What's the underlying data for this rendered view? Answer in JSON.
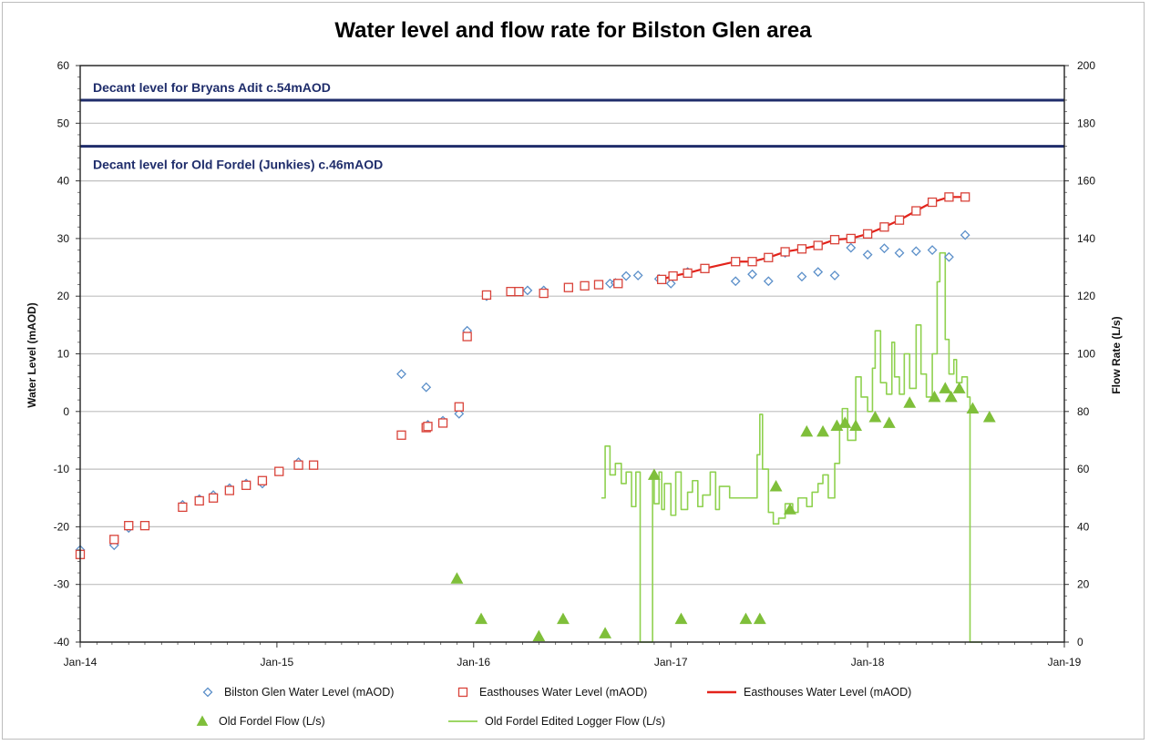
{
  "chart_data": {
    "type": "scatter",
    "title": "Water level and flow rate for Bilston Glen area",
    "ylabel": "Water Level (mAOD)",
    "y2label": "Flow Rate (L/s)",
    "ylim": [
      -40,
      60
    ],
    "y2lim": [
      0,
      200
    ],
    "xlim": [
      "2014-01-01",
      "2019-01-01"
    ],
    "x_ticks": [
      "Jan-14",
      "Jan-15",
      "Jan-16",
      "Jan-17",
      "Jan-18",
      "Jan-19"
    ],
    "y_ticks": [
      60,
      50,
      40,
      30,
      20,
      10,
      0,
      -10,
      -20,
      -30,
      -40
    ],
    "y2_ticks": [
      200,
      180,
      160,
      140,
      120,
      100,
      80,
      60,
      40,
      20,
      0
    ],
    "grid": true,
    "legend_position": "bottom",
    "reference_lines": [
      {
        "label": "Decant level for Bryans Adit c.54mAOD",
        "y": 54
      },
      {
        "label": "Decant level for Old Fordel (Junkies) c.46mAOD",
        "y": 46
      }
    ],
    "series": [
      {
        "name": "Bilston Glen Water Level (mAOD)",
        "axis": "left",
        "marker": "diamond",
        "color": "#5b8fc9",
        "points": [
          [
            "2014-01-01",
            -24.0
          ],
          [
            "2014-03-05",
            -23.2
          ],
          [
            "2014-04-01",
            -20.2
          ],
          [
            "2014-07-10",
            -16.2
          ],
          [
            "2014-08-10",
            -15.2
          ],
          [
            "2014-09-05",
            -14.5
          ],
          [
            "2014-10-05",
            -13.3
          ],
          [
            "2014-11-05",
            -12.5
          ],
          [
            "2014-12-05",
            -12.5
          ],
          [
            "2015-02-10",
            -8.8
          ],
          [
            "2015-08-20",
            6.5
          ],
          [
            "2015-10-05",
            4.2
          ],
          [
            "2015-10-08",
            -2.3
          ],
          [
            "2015-11-05",
            -1.6
          ],
          [
            "2015-12-05",
            -0.4
          ],
          [
            "2015-12-20",
            14.0
          ],
          [
            "2016-01-25",
            20.0
          ],
          [
            "2016-04-10",
            21.0
          ],
          [
            "2016-05-10",
            21.0
          ],
          [
            "2016-09-10",
            22.2
          ],
          [
            "2016-09-20",
            22.3
          ],
          [
            "2016-10-10",
            23.5
          ],
          [
            "2016-11-01",
            23.6
          ],
          [
            "2016-12-10",
            23.0
          ],
          [
            "2017-01-01",
            22.2
          ],
          [
            "2017-02-01",
            24.2
          ],
          [
            "2017-05-01",
            22.6
          ],
          [
            "2017-06-01",
            23.8
          ],
          [
            "2017-07-01",
            22.6
          ],
          [
            "2017-08-01",
            27.5
          ],
          [
            "2017-09-01",
            23.4
          ],
          [
            "2017-10-01",
            24.2
          ],
          [
            "2017-11-01",
            23.6
          ],
          [
            "2017-12-01",
            28.4
          ],
          [
            "2018-01-01",
            27.2
          ],
          [
            "2018-02-01",
            28.3
          ],
          [
            "2018-03-01",
            27.5
          ],
          [
            "2018-04-01",
            27.8
          ],
          [
            "2018-05-01",
            28.0
          ],
          [
            "2018-06-01",
            26.8
          ],
          [
            "2018-07-01",
            30.6
          ]
        ]
      },
      {
        "name": "Easthouses Water Level (mAOD)",
        "axis": "left",
        "marker": "square",
        "color": "#d9433a",
        "points": [
          [
            "2014-01-01",
            -24.8
          ],
          [
            "2014-03-05",
            -22.2
          ],
          [
            "2014-04-01",
            -19.8
          ],
          [
            "2014-05-01",
            -19.8
          ],
          [
            "2014-07-10",
            -16.6
          ],
          [
            "2014-08-10",
            -15.5
          ],
          [
            "2014-09-05",
            -15.0
          ],
          [
            "2014-10-05",
            -13.7
          ],
          [
            "2014-11-05",
            -12.8
          ],
          [
            "2014-12-05",
            -12.0
          ],
          [
            "2015-01-05",
            -10.4
          ],
          [
            "2015-02-10",
            -9.3
          ],
          [
            "2015-03-10",
            -9.3
          ],
          [
            "2015-08-20",
            -4.1
          ],
          [
            "2015-10-05",
            -2.8
          ],
          [
            "2015-10-08",
            -2.6
          ],
          [
            "2015-11-05",
            -2.0
          ],
          [
            "2015-12-05",
            0.8
          ],
          [
            "2015-12-20",
            13.0
          ],
          [
            "2016-01-25",
            20.2
          ],
          [
            "2016-03-10",
            20.8
          ],
          [
            "2016-03-25",
            20.8
          ],
          [
            "2016-05-10",
            20.5
          ],
          [
            "2016-06-25",
            21.5
          ],
          [
            "2016-07-25",
            21.8
          ],
          [
            "2016-08-20",
            22.0
          ],
          [
            "2016-09-25",
            22.2
          ],
          [
            "2016-12-15",
            22.9
          ],
          [
            "2017-01-05",
            23.5
          ],
          [
            "2017-02-01",
            24.0
          ],
          [
            "2017-03-05",
            24.8
          ],
          [
            "2017-05-01",
            26.0
          ],
          [
            "2017-06-01",
            26.0
          ],
          [
            "2017-07-01",
            26.7
          ],
          [
            "2017-08-01",
            27.7
          ],
          [
            "2017-09-01",
            28.2
          ],
          [
            "2017-10-01",
            28.8
          ],
          [
            "2017-11-01",
            29.8
          ],
          [
            "2017-12-01",
            30.0
          ],
          [
            "2018-01-01",
            30.8
          ],
          [
            "2018-02-01",
            32.0
          ],
          [
            "2018-03-01",
            33.2
          ],
          [
            "2018-04-01",
            34.8
          ],
          [
            "2018-05-01",
            36.3
          ],
          [
            "2018-06-01",
            37.2
          ],
          [
            "2018-07-01",
            37.2
          ]
        ]
      },
      {
        "name": "Easthouses Water Level (mAOD)",
        "axis": "left",
        "marker": "line",
        "color": "#e3231b",
        "points": [
          [
            "2016-12-15",
            22.9
          ],
          [
            "2017-01-05",
            23.5
          ],
          [
            "2017-02-01",
            24.0
          ],
          [
            "2017-03-05",
            24.8
          ],
          [
            "2017-05-01",
            26.0
          ],
          [
            "2017-06-01",
            26.0
          ],
          [
            "2017-07-01",
            26.7
          ],
          [
            "2017-08-01",
            27.7
          ],
          [
            "2017-09-01",
            28.2
          ],
          [
            "2017-10-01",
            28.8
          ],
          [
            "2017-11-01",
            29.8
          ],
          [
            "2017-12-01",
            30.0
          ],
          [
            "2018-01-01",
            30.8
          ],
          [
            "2018-02-01",
            32.0
          ],
          [
            "2018-03-01",
            33.2
          ],
          [
            "2018-04-01",
            34.8
          ],
          [
            "2018-05-01",
            36.3
          ],
          [
            "2018-06-01",
            37.2
          ],
          [
            "2018-07-01",
            37.2
          ]
        ]
      },
      {
        "name": "Old Fordel Flow (L/s)",
        "axis": "right",
        "marker": "triangle",
        "color": "#7fbf3a",
        "points": [
          [
            "2015-12-01",
            22
          ],
          [
            "2016-01-15",
            8
          ],
          [
            "2016-05-01",
            2
          ],
          [
            "2016-06-15",
            8
          ],
          [
            "2016-09-01",
            3
          ],
          [
            "2016-12-01",
            58
          ],
          [
            "2017-01-20",
            8
          ],
          [
            "2017-05-20",
            8
          ],
          [
            "2017-06-15",
            8
          ],
          [
            "2017-07-15",
            54
          ],
          [
            "2017-08-10",
            46
          ],
          [
            "2017-09-10",
            73
          ],
          [
            "2017-10-10",
            73
          ],
          [
            "2017-11-05",
            75
          ],
          [
            "2017-11-20",
            76
          ],
          [
            "2017-12-10",
            75
          ],
          [
            "2018-01-15",
            78
          ],
          [
            "2018-02-10",
            76
          ],
          [
            "2018-03-20",
            83
          ],
          [
            "2018-05-05",
            85
          ],
          [
            "2018-05-25",
            88
          ],
          [
            "2018-06-05",
            85
          ],
          [
            "2018-06-20",
            88
          ],
          [
            "2018-07-15",
            81
          ],
          [
            "2018-08-15",
            78
          ]
        ]
      },
      {
        "name": "Old Fordel Edited Logger Flow (L/s)",
        "axis": "right",
        "marker": "line",
        "color": "#8fd14f",
        "points": [
          [
            "2016-08-25",
            50
          ],
          [
            "2016-09-01",
            68
          ],
          [
            "2016-09-10",
            58
          ],
          [
            "2016-09-20",
            62
          ],
          [
            "2016-10-01",
            55
          ],
          [
            "2016-10-10",
            59
          ],
          [
            "2016-10-20",
            47
          ],
          [
            "2016-10-28",
            59
          ],
          [
            "2016-11-05",
            0
          ],
          [
            "2016-11-20",
            0
          ],
          [
            "2016-11-28",
            57
          ],
          [
            "2016-12-01",
            48
          ],
          [
            "2016-12-10",
            59
          ],
          [
            "2016-12-15",
            46
          ],
          [
            "2016-12-20",
            55
          ],
          [
            "2017-01-01",
            44
          ],
          [
            "2017-01-10",
            59
          ],
          [
            "2017-01-20",
            46
          ],
          [
            "2017-02-01",
            52
          ],
          [
            "2017-02-10",
            56
          ],
          [
            "2017-02-20",
            47
          ],
          [
            "2017-03-01",
            51
          ],
          [
            "2017-03-15",
            59
          ],
          [
            "2017-03-25",
            46
          ],
          [
            "2017-04-01",
            54
          ],
          [
            "2017-04-20",
            50
          ],
          [
            "2017-06-10",
            65
          ],
          [
            "2017-06-15",
            79
          ],
          [
            "2017-06-20",
            60
          ],
          [
            "2017-07-01",
            45
          ],
          [
            "2017-07-10",
            41
          ],
          [
            "2017-07-20",
            43
          ],
          [
            "2017-08-01",
            48
          ],
          [
            "2017-08-15",
            45
          ],
          [
            "2017-08-25",
            50
          ],
          [
            "2017-09-10",
            47
          ],
          [
            "2017-09-20",
            52
          ],
          [
            "2017-10-01",
            55
          ],
          [
            "2017-10-10",
            58
          ],
          [
            "2017-10-20",
            50
          ],
          [
            "2017-11-01",
            62
          ],
          [
            "2017-11-10",
            75
          ],
          [
            "2017-11-15",
            81
          ],
          [
            "2017-11-25",
            70
          ],
          [
            "2017-12-10",
            92
          ],
          [
            "2017-12-20",
            85
          ],
          [
            "2018-01-01",
            80
          ],
          [
            "2018-01-10",
            95
          ],
          [
            "2018-01-15",
            108
          ],
          [
            "2018-01-25",
            90
          ],
          [
            "2018-02-05",
            86
          ],
          [
            "2018-02-15",
            104
          ],
          [
            "2018-02-20",
            92
          ],
          [
            "2018-03-01",
            86
          ],
          [
            "2018-03-10",
            100
          ],
          [
            "2018-03-20",
            88
          ],
          [
            "2018-04-01",
            110
          ],
          [
            "2018-04-10",
            93
          ],
          [
            "2018-04-20",
            85
          ],
          [
            "2018-05-01",
            100
          ],
          [
            "2018-05-10",
            125
          ],
          [
            "2018-05-15",
            135
          ],
          [
            "2018-05-25",
            105
          ],
          [
            "2018-06-01",
            93
          ],
          [
            "2018-06-10",
            98
          ],
          [
            "2018-06-15",
            90
          ],
          [
            "2018-06-25",
            92
          ],
          [
            "2018-07-05",
            85
          ],
          [
            "2018-07-10",
            0
          ],
          [
            "2018-08-01",
            0
          ]
        ]
      }
    ]
  }
}
